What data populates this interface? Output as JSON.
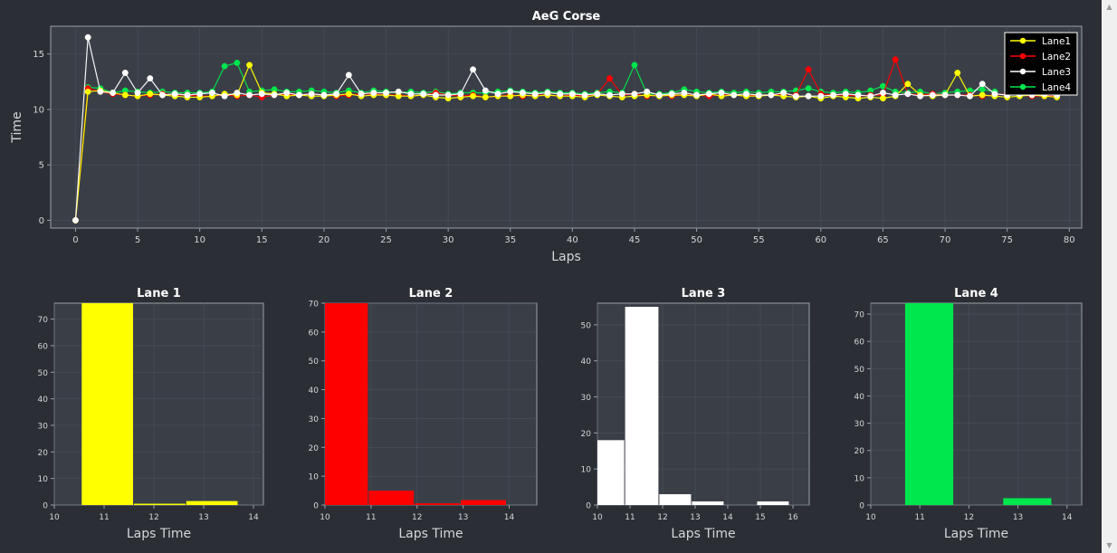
{
  "colors": {
    "background": "#2b2f35",
    "plot_bg": "#3a3f47",
    "grid": "#4a505a",
    "axis": "#9aa0a8",
    "text": "#d4d7dc",
    "title": "#ffffff",
    "lane1": "#ffff00",
    "lane2": "#ff0000",
    "lane3": "#ffffff",
    "lane4": "#00e64d"
  },
  "chart_data": [
    {
      "type": "line",
      "title": "AeG Corse",
      "xlabel": "Laps",
      "ylabel": "Time",
      "xlim": [
        -2,
        81
      ],
      "ylim": [
        -0.7,
        17.5
      ],
      "xticks": [
        0,
        5,
        10,
        15,
        20,
        25,
        30,
        35,
        40,
        45,
        50,
        55,
        60,
        65,
        70,
        75,
        80
      ],
      "yticks": [
        0,
        5,
        10,
        15
      ],
      "grid": true,
      "legend_position": "top-right",
      "series": [
        {
          "name": "Lane1",
          "color": "#ffff00",
          "x_start": 0,
          "values": [
            0,
            11.6,
            11.7,
            11.5,
            11.3,
            11.2,
            11.4,
            11.3,
            11.2,
            11.1,
            11.1,
            11.2,
            11.4,
            11.3,
            14.0,
            11.5,
            11.4,
            11.2,
            11.3,
            11.2,
            11.2,
            11.3,
            11.4,
            11.2,
            11.3,
            11.3,
            11.2,
            11.2,
            11.3,
            11.1,
            11.0,
            11.1,
            11.2,
            11.1,
            11.2,
            11.2,
            11.3,
            11.2,
            11.3,
            11.2,
            11.2,
            11.1,
            11.3,
            11.2,
            11.1,
            11.2,
            11.3,
            11.2,
            11.3,
            11.3,
            11.2,
            11.4,
            11.2,
            11.3,
            11.2,
            11.2,
            11.3,
            11.2,
            11.1,
            11.2,
            11.0,
            11.2,
            11.1,
            11.0,
            11.1,
            11.0,
            11.2,
            12.3,
            11.3,
            11.2,
            11.3,
            13.3,
            11.2,
            11.3,
            11.2,
            11.1,
            11.2,
            11.3,
            11.2,
            11.1
          ]
        },
        {
          "name": "Lane2",
          "color": "#ff0000",
          "x_start": 0,
          "values": [
            0,
            11.9,
            11.6,
            11.4,
            11.3,
            11.2,
            11.3,
            11.4,
            11.3,
            11.3,
            11.2,
            11.2,
            11.3,
            11.2,
            11.3,
            11.1,
            11.3,
            11.4,
            11.3,
            11.4,
            11.3,
            11.2,
            11.3,
            11.4,
            11.4,
            11.3,
            11.3,
            11.2,
            11.3,
            11.5,
            11.3,
            11.2,
            11.3,
            11.1,
            11.2,
            11.3,
            11.2,
            11.3,
            11.3,
            11.2,
            11.3,
            11.2,
            11.4,
            12.8,
            11.3,
            11.4,
            11.2,
            11.3,
            11.2,
            11.3,
            11.3,
            11.2,
            11.3,
            11.3,
            11.2,
            11.3,
            11.3,
            11.4,
            11.3,
            13.6,
            11.4,
            11.3,
            11.3,
            11.2,
            11.3,
            11.3,
            14.5,
            11.4,
            11.3,
            11.4,
            11.3,
            11.3,
            11.3,
            11.2,
            11.3,
            11.4,
            11.3,
            11.2,
            11.2,
            11.2
          ]
        },
        {
          "name": "Lane3",
          "color": "#ffffff",
          "x_start": 0,
          "values": [
            0,
            16.5,
            11.6,
            11.5,
            13.3,
            11.5,
            12.8,
            11.3,
            11.4,
            11.3,
            11.4,
            11.5,
            11.2,
            11.5,
            11.3,
            11.4,
            11.3,
            11.5,
            11.3,
            11.4,
            11.3,
            11.4,
            13.1,
            11.4,
            11.5,
            11.5,
            11.6,
            11.4,
            11.4,
            11.3,
            11.3,
            11.4,
            13.6,
            11.7,
            11.4,
            11.6,
            11.5,
            11.4,
            11.5,
            11.4,
            11.4,
            11.3,
            11.4,
            11.3,
            11.4,
            11.4,
            11.6,
            11.3,
            11.4,
            11.5,
            11.3,
            11.4,
            11.5,
            11.3,
            11.4,
            11.3,
            11.3,
            11.5,
            11.2,
            11.2,
            11.2,
            11.3,
            11.4,
            11.3,
            11.2,
            11.5,
            11.3,
            11.4,
            11.2,
            11.3,
            11.3,
            11.3,
            11.2,
            12.3,
            11.4,
            11.3,
            11.4,
            11.3,
            11.4,
            11.3
          ]
        },
        {
          "name": "Lane4",
          "color": "#00e64d",
          "x_start": 0,
          "values": [
            0,
            12.0,
            11.9,
            11.5,
            11.7,
            11.6,
            11.5,
            11.6,
            11.5,
            11.5,
            11.5,
            11.6,
            13.9,
            14.2,
            11.6,
            11.7,
            11.8,
            11.6,
            11.6,
            11.7,
            11.6,
            11.5,
            11.7,
            11.5,
            11.7,
            11.6,
            11.5,
            11.6,
            11.5,
            11.6,
            11.4,
            11.5,
            11.5,
            11.5,
            11.6,
            11.7,
            11.6,
            11.5,
            11.6,
            11.5,
            11.5,
            11.4,
            11.5,
            11.6,
            11.5,
            14.0,
            11.4,
            11.4,
            11.5,
            11.8,
            11.6,
            11.5,
            11.6,
            11.5,
            11.6,
            11.5,
            11.6,
            11.6,
            11.7,
            11.9,
            11.6,
            11.5,
            11.6,
            11.5,
            11.7,
            12.1,
            11.6,
            11.5,
            11.6,
            11.4,
            11.5,
            11.6,
            11.7,
            11.8,
            11.6
          ]
        }
      ]
    },
    {
      "type": "bar",
      "title": "Lane 1",
      "xlabel": "Laps Time",
      "ylabel": "",
      "color": "#ffff00",
      "xlim": [
        10,
        14.2
      ],
      "ylim": [
        0,
        76
      ],
      "xticks": [
        10,
        11,
        12,
        13,
        14
      ],
      "yticks": [
        0,
        10,
        20,
        30,
        40,
        50,
        60,
        70
      ],
      "bins": [
        {
          "x0": 10.55,
          "x1": 11.6,
          "value": 76
        },
        {
          "x0": 11.6,
          "x1": 12.65,
          "value": 0.5
        },
        {
          "x0": 12.65,
          "x1": 13.7,
          "value": 1.5
        }
      ]
    },
    {
      "type": "bar",
      "title": "Lane 2",
      "xlabel": "Laps Time",
      "ylabel": "",
      "color": "#ff0000",
      "xlim": [
        10,
        14.6
      ],
      "ylim": [
        0,
        70
      ],
      "xticks": [
        10,
        11,
        12,
        13,
        14
      ],
      "yticks": [
        0,
        10,
        20,
        30,
        40,
        50,
        60,
        70
      ],
      "bins": [
        {
          "x0": 10.0,
          "x1": 10.95,
          "value": 70
        },
        {
          "x0": 10.95,
          "x1": 11.95,
          "value": 5
        },
        {
          "x0": 11.95,
          "x1": 12.95,
          "value": 0.6
        },
        {
          "x0": 12.95,
          "x1": 13.95,
          "value": 1.7
        }
      ]
    },
    {
      "type": "bar",
      "title": "Lane 3",
      "xlabel": "Laps Time",
      "ylabel": "",
      "color": "#ffffff",
      "xlim": [
        10,
        16.5
      ],
      "ylim": [
        0,
        56
      ],
      "xticks": [
        10,
        11,
        12,
        13,
        14,
        15,
        16
      ],
      "yticks": [
        0,
        10,
        20,
        30,
        40,
        50
      ],
      "bins": [
        {
          "x0": 10.0,
          "x1": 10.85,
          "value": 18
        },
        {
          "x0": 10.85,
          "x1": 11.9,
          "value": 55
        },
        {
          "x0": 11.9,
          "x1": 12.9,
          "value": 3
        },
        {
          "x0": 12.9,
          "x1": 13.9,
          "value": 1
        },
        {
          "x0": 14.9,
          "x1": 15.9,
          "value": 1
        }
      ]
    },
    {
      "type": "bar",
      "title": "Lane 4",
      "xlabel": "Laps Time",
      "ylabel": "",
      "color": "#00e64d",
      "xlim": [
        10,
        14.3
      ],
      "ylim": [
        0,
        74
      ],
      "xticks": [
        10,
        11,
        12,
        13,
        14
      ],
      "yticks": [
        0,
        10,
        20,
        30,
        40,
        50,
        60,
        70
      ],
      "bins": [
        {
          "x0": 10.7,
          "x1": 11.7,
          "value": 74
        },
        {
          "x0": 12.7,
          "x1": 13.7,
          "value": 2.5
        }
      ]
    }
  ],
  "scrollbar": {
    "up_arrow": "▲",
    "down_arrow": "▼"
  }
}
